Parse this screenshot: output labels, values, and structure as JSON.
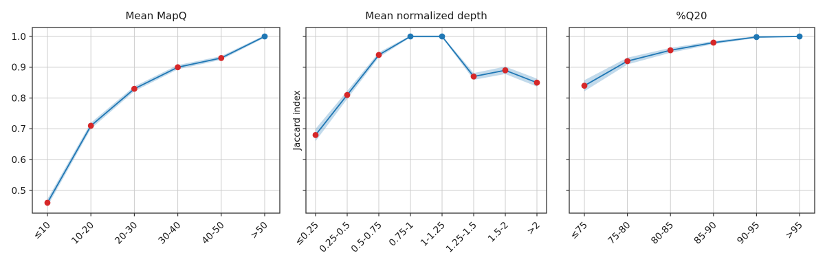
{
  "figure": {
    "background": "#ffffff",
    "shared_y_axis": true
  },
  "axes": {
    "ylim": [
      0.426,
      1.029
    ],
    "y_ticks": [
      0.5,
      0.6,
      0.7,
      0.8,
      0.9,
      1.0
    ],
    "y_tick_labels": [
      "0.5",
      "0.6",
      "0.7",
      "0.8",
      "0.9",
      "1.0"
    ],
    "grid": true,
    "x_tick_label_rotation_deg": 45
  },
  "colors": {
    "line": "#1f77b4",
    "marker_red": "#d62728",
    "marker_blue": "#1f77b4",
    "band": "#1f77b4",
    "band_opacity": 0.27,
    "grid": "#cccccc",
    "spine": "#333333",
    "text": "#1a1a1a"
  },
  "chart_data": [
    {
      "type": "line",
      "title": "Mean MapQ",
      "ylabel": "",
      "categories": [
        "≤10",
        "10-20",
        "20-30",
        "30-40",
        "40-50",
        ">50"
      ],
      "values": [
        0.46,
        0.71,
        0.83,
        0.9,
        0.93,
        1.0
      ],
      "band_halfwidth": [
        0.012,
        0.01,
        0.008,
        0.007,
        0.006,
        0.004
      ],
      "marker_colors": [
        "red",
        "red",
        "red",
        "red",
        "red",
        "blue"
      ],
      "show_y_tick_labels": true,
      "legend": "none"
    },
    {
      "type": "line",
      "title": "Mean normalized depth",
      "ylabel": "Jaccard index",
      "categories": [
        "≤0.25",
        "0.25-0.5",
        "0.5-0.75",
        "0.75-1",
        "1-1.25",
        "1.25-1.5",
        "1.5-2",
        ">2"
      ],
      "values": [
        0.68,
        0.81,
        0.94,
        1.0,
        1.0,
        0.87,
        0.89,
        0.85
      ],
      "band_halfwidth": [
        0.02,
        0.013,
        0.008,
        0.003,
        0.003,
        0.011,
        0.012,
        0.013
      ],
      "marker_colors": [
        "red",
        "red",
        "red",
        "blue",
        "blue",
        "red",
        "red",
        "red"
      ],
      "show_y_tick_labels": false,
      "legend": "none"
    },
    {
      "type": "line",
      "title": "%Q20",
      "ylabel": "",
      "categories": [
        "≤75",
        "75-80",
        "80-85",
        "85-90",
        "90-95",
        ">95"
      ],
      "values": [
        0.84,
        0.92,
        0.955,
        0.98,
        0.998,
        1.0
      ],
      "band_halfwidth": [
        0.018,
        0.011,
        0.008,
        0.005,
        0.003,
        0.002
      ],
      "marker_colors": [
        "red",
        "red",
        "red",
        "red",
        "blue",
        "blue"
      ],
      "show_y_tick_labels": false,
      "legend": "none"
    }
  ]
}
